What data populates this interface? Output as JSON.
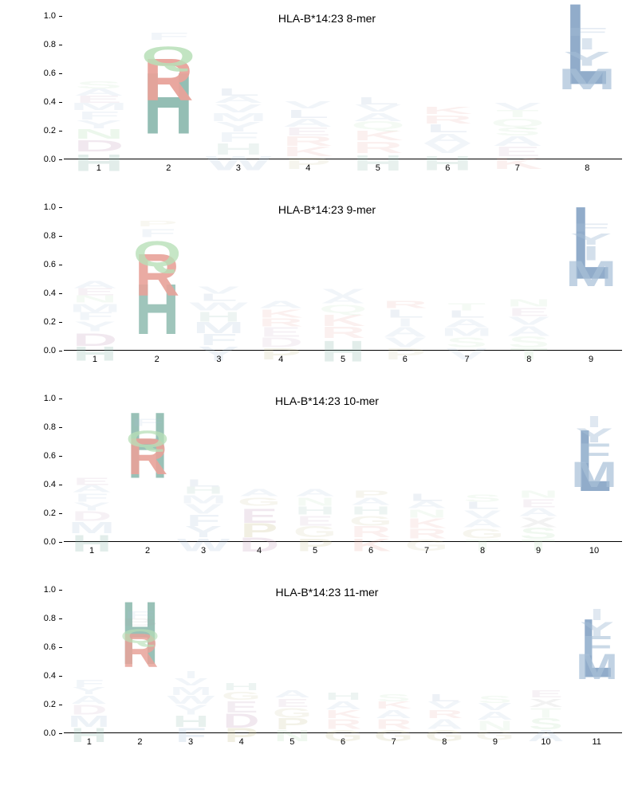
{
  "allele": "HLA-B*14:23",
  "panels": [
    {
      "title": "HLA-B*14:23 8-mer",
      "positions": 8
    },
    {
      "title": "HLA-B*14:23 9-mer",
      "positions": 9
    },
    {
      "title": "HLA-B*14:23 10-mer",
      "positions": 10
    },
    {
      "title": "HLA-B*14:23 11-mer",
      "positions": 11
    }
  ],
  "ylim": [
    0,
    1.0
  ],
  "yticks": [
    0.0,
    0.2,
    0.4,
    0.6,
    0.8,
    1.0
  ],
  "title_fontsize": 14,
  "tick_fontsize": 11,
  "aa_colors": {
    "H": "#8fbbb0",
    "R": "#e8a39a",
    "Q": "#b8e0b8",
    "K": "#e8a39a",
    "L": "#8ca8c8",
    "M": "#a8c0d8",
    "Y": "#a8c0d8",
    "F": "#a8c0d8",
    "I": "#a8c0d8",
    "V": "#a8c0d8",
    "W": "#a8c0d8",
    "A": "#a8c0d8",
    "D": "#c8a8c0",
    "E": "#c8a8c0",
    "P": "#c8c090",
    "N": "#b8e0b8",
    "S": "#b8e0b8",
    "T": "#b8e0b8",
    "G": "#c8c090",
    "C": "#b8e0b8"
  },
  "faded_alpha": 0.12,
  "strong_alpha": 0.95,
  "logos": {
    "8": [
      [
        [
          "H",
          0.12,
          0.25
        ],
        [
          "D",
          0.08,
          0.25
        ],
        [
          "N",
          0.07,
          0.25
        ],
        [
          "Y",
          0.06,
          0.15
        ],
        [
          "F",
          0.06,
          0.15
        ],
        [
          "M",
          0.05,
          0.15
        ],
        [
          "E",
          0.05,
          0.15
        ],
        [
          "A",
          0.05,
          0.15
        ],
        [
          "S",
          0.05,
          0.15
        ]
      ],
      [
        [
          "H",
          0.44,
          0.95
        ],
        [
          "R",
          0.3,
          0.95
        ],
        [
          "Q",
          0.14,
          0.85
        ],
        [
          "F",
          0.05,
          0.15
        ]
      ],
      [
        [
          "W",
          0.1,
          0.2
        ],
        [
          "H",
          0.08,
          0.15
        ],
        [
          "F",
          0.07,
          0.15
        ],
        [
          "Y",
          0.07,
          0.15
        ],
        [
          "M",
          0.06,
          0.15
        ],
        [
          "V",
          0.06,
          0.15
        ],
        [
          "A",
          0.05,
          0.15
        ],
        [
          "L",
          0.05,
          0.15
        ]
      ],
      [
        [
          "P",
          0.08,
          0.15
        ],
        [
          "K",
          0.07,
          0.15
        ],
        [
          "R",
          0.07,
          0.15
        ],
        [
          "E",
          0.06,
          0.15
        ],
        [
          "A",
          0.06,
          0.15
        ],
        [
          "L",
          0.06,
          0.15
        ],
        [
          "V",
          0.05,
          0.15
        ]
      ],
      [
        [
          "H",
          0.11,
          0.2
        ],
        [
          "R",
          0.08,
          0.15
        ],
        [
          "K",
          0.07,
          0.15
        ],
        [
          "Q",
          0.06,
          0.15
        ],
        [
          "A",
          0.06,
          0.15
        ],
        [
          "V",
          0.05,
          0.15
        ],
        [
          "L",
          0.05,
          0.15
        ]
      ],
      [
        [
          "H",
          0.1,
          0.2
        ],
        [
          "V",
          0.07,
          0.15
        ],
        [
          "A",
          0.07,
          0.15
        ],
        [
          "L",
          0.06,
          0.15
        ],
        [
          "R",
          0.06,
          0.15
        ],
        [
          "K",
          0.05,
          0.15
        ]
      ],
      [
        [
          "K",
          0.08,
          0.15
        ],
        [
          "E",
          0.07,
          0.15
        ],
        [
          "A",
          0.07,
          0.15
        ],
        [
          "S",
          0.06,
          0.15
        ],
        [
          "Q",
          0.06,
          0.15
        ],
        [
          "T",
          0.05,
          0.15
        ],
        [
          "V",
          0.05,
          0.15
        ]
      ],
      [
        [
          "L",
          0.58,
          0.95
        ],
        [
          "M",
          0.15,
          0.7
        ],
        [
          "Y",
          0.1,
          0.5
        ],
        [
          "I",
          0.08,
          0.4
        ],
        [
          "F",
          0.06,
          0.3
        ]
      ]
    ],
    "9": [
      [
        [
          "H",
          0.1,
          0.25
        ],
        [
          "D",
          0.09,
          0.25
        ],
        [
          "Y",
          0.07,
          0.15
        ],
        [
          "F",
          0.06,
          0.15
        ],
        [
          "M",
          0.06,
          0.15
        ],
        [
          "N",
          0.05,
          0.15
        ],
        [
          "E",
          0.05,
          0.15
        ],
        [
          "A",
          0.05,
          0.15
        ]
      ],
      [
        [
          "H",
          0.36,
          0.85
        ],
        [
          "R",
          0.3,
          0.9
        ],
        [
          "Q",
          0.18,
          0.8
        ],
        [
          "F",
          0.06,
          0.15
        ],
        [
          "P",
          0.04,
          0.12
        ]
      ],
      [
        [
          "Y",
          0.1,
          0.2
        ],
        [
          "F",
          0.08,
          0.2
        ],
        [
          "M",
          0.08,
          0.2
        ],
        [
          "H",
          0.07,
          0.15
        ],
        [
          "W",
          0.06,
          0.15
        ],
        [
          "L",
          0.05,
          0.15
        ],
        [
          "V",
          0.05,
          0.15
        ]
      ],
      [
        [
          "P",
          0.08,
          0.2
        ],
        [
          "D",
          0.07,
          0.15
        ],
        [
          "E",
          0.07,
          0.15
        ],
        [
          "R",
          0.06,
          0.15
        ],
        [
          "K",
          0.06,
          0.15
        ],
        [
          "A",
          0.05,
          0.15
        ]
      ],
      [
        [
          "H",
          0.15,
          0.25
        ],
        [
          "R",
          0.08,
          0.15
        ],
        [
          "K",
          0.08,
          0.15
        ],
        [
          "Q",
          0.06,
          0.15
        ],
        [
          "A",
          0.05,
          0.15
        ],
        [
          "V",
          0.05,
          0.15
        ]
      ],
      [
        [
          "P",
          0.08,
          0.15
        ],
        [
          "V",
          0.07,
          0.15
        ],
        [
          "A",
          0.07,
          0.15
        ],
        [
          "I",
          0.06,
          0.15
        ],
        [
          "L",
          0.06,
          0.15
        ],
        [
          "R",
          0.05,
          0.15
        ]
      ],
      [
        [
          "V",
          0.08,
          0.15
        ],
        [
          "S",
          0.07,
          0.15
        ],
        [
          "M",
          0.06,
          0.15
        ],
        [
          "A",
          0.06,
          0.15
        ],
        [
          "L",
          0.05,
          0.15
        ],
        [
          "T",
          0.05,
          0.15
        ]
      ],
      [
        [
          "T",
          0.08,
          0.2
        ],
        [
          "S",
          0.08,
          0.15
        ],
        [
          "A",
          0.07,
          0.15
        ],
        [
          "V",
          0.06,
          0.15
        ],
        [
          "E",
          0.06,
          0.15
        ],
        [
          "N",
          0.05,
          0.15
        ]
      ],
      [
        [
          "L",
          0.52,
          0.95
        ],
        [
          "M",
          0.18,
          0.7
        ],
        [
          "I",
          0.1,
          0.5
        ],
        [
          "Y",
          0.08,
          0.4
        ],
        [
          "F",
          0.06,
          0.3
        ]
      ]
    ],
    "10": [
      [
        [
          "H",
          0.12,
          0.25
        ],
        [
          "M",
          0.08,
          0.2
        ],
        [
          "D",
          0.07,
          0.15
        ],
        [
          "Y",
          0.06,
          0.15
        ],
        [
          "F",
          0.06,
          0.15
        ],
        [
          "A",
          0.05,
          0.15
        ],
        [
          "E",
          0.05,
          0.15
        ]
      ],
      [
        [
          "H",
          0.47,
          0.9
        ],
        [
          "R",
          0.26,
          0.9
        ],
        [
          "Q",
          0.12,
          0.75
        ],
        [
          "F",
          0.05,
          0.15
        ]
      ],
      [
        [
          "W",
          0.09,
          0.2
        ],
        [
          "Y",
          0.08,
          0.2
        ],
        [
          "F",
          0.08,
          0.2
        ],
        [
          "V",
          0.07,
          0.15
        ],
        [
          "M",
          0.06,
          0.15
        ],
        [
          "H",
          0.05,
          0.15
        ],
        [
          "L",
          0.05,
          0.15
        ]
      ],
      [
        [
          "D",
          0.1,
          0.25
        ],
        [
          "P",
          0.1,
          0.25
        ],
        [
          "E",
          0.1,
          0.25
        ],
        [
          "G",
          0.06,
          0.15
        ],
        [
          "A",
          0.05,
          0.15
        ]
      ],
      [
        [
          "P",
          0.09,
          0.2
        ],
        [
          "G",
          0.08,
          0.15
        ],
        [
          "E",
          0.07,
          0.15
        ],
        [
          "H",
          0.06,
          0.15
        ],
        [
          "N",
          0.06,
          0.15
        ],
        [
          "A",
          0.05,
          0.15
        ]
      ],
      [
        [
          "K",
          0.09,
          0.2
        ],
        [
          "R",
          0.08,
          0.15
        ],
        [
          "G",
          0.07,
          0.15
        ],
        [
          "H",
          0.06,
          0.15
        ],
        [
          "A",
          0.05,
          0.15
        ],
        [
          "P",
          0.05,
          0.15
        ]
      ],
      [
        [
          "G",
          0.08,
          0.15
        ],
        [
          "R",
          0.07,
          0.15
        ],
        [
          "K",
          0.07,
          0.15
        ],
        [
          "N",
          0.06,
          0.15
        ],
        [
          "A",
          0.05,
          0.15
        ],
        [
          "L",
          0.05,
          0.15
        ]
      ],
      [
        [
          "T",
          0.08,
          0.15
        ],
        [
          "G",
          0.07,
          0.15
        ],
        [
          "A",
          0.06,
          0.15
        ],
        [
          "V",
          0.06,
          0.15
        ],
        [
          "L",
          0.05,
          0.15
        ],
        [
          "S",
          0.05,
          0.15
        ]
      ],
      [
        [
          "T",
          0.08,
          0.2
        ],
        [
          "S",
          0.08,
          0.2
        ],
        [
          "X",
          0.07,
          0.15
        ],
        [
          "A",
          0.06,
          0.15
        ],
        [
          "E",
          0.06,
          0.15
        ],
        [
          "N",
          0.05,
          0.15
        ]
      ],
      [
        [
          "L",
          0.44,
          0.95
        ],
        [
          "M",
          0.18,
          0.7
        ],
        [
          "F",
          0.14,
          0.6
        ],
        [
          "Y",
          0.1,
          0.45
        ],
        [
          "I",
          0.08,
          0.35
        ]
      ]
    ],
    "11": [
      [
        [
          "H",
          0.1,
          0.25
        ],
        [
          "M",
          0.08,
          0.2
        ],
        [
          "D",
          0.07,
          0.15
        ],
        [
          "A",
          0.06,
          0.15
        ],
        [
          "Y",
          0.05,
          0.15
        ],
        [
          "F",
          0.05,
          0.15
        ]
      ],
      [
        [
          "H",
          0.45,
          0.9
        ],
        [
          "R",
          0.24,
          0.85
        ],
        [
          "Q",
          0.1,
          0.65
        ],
        [
          "B",
          0.05,
          0.15
        ],
        [
          "F",
          0.05,
          0.15
        ]
      ],
      [
        [
          "F",
          0.1,
          0.25
        ],
        [
          "H",
          0.08,
          0.2
        ],
        [
          "Y",
          0.07,
          0.15
        ],
        [
          "W",
          0.06,
          0.15
        ],
        [
          "M",
          0.06,
          0.15
        ],
        [
          "V",
          0.05,
          0.15
        ],
        [
          "I",
          0.05,
          0.15
        ]
      ],
      [
        [
          "P",
          0.1,
          0.25
        ],
        [
          "D",
          0.1,
          0.25
        ],
        [
          "E",
          0.08,
          0.2
        ],
        [
          "G",
          0.06,
          0.15
        ],
        [
          "H",
          0.05,
          0.15
        ]
      ],
      [
        [
          "N",
          0.08,
          0.2
        ],
        [
          "P",
          0.08,
          0.2
        ],
        [
          "G",
          0.07,
          0.15
        ],
        [
          "E",
          0.06,
          0.15
        ],
        [
          "A",
          0.05,
          0.15
        ]
      ],
      [
        [
          "G",
          0.08,
          0.2
        ],
        [
          "R",
          0.07,
          0.15
        ],
        [
          "K",
          0.06,
          0.15
        ],
        [
          "A",
          0.06,
          0.15
        ],
        [
          "H",
          0.05,
          0.15
        ]
      ],
      [
        [
          "G",
          0.08,
          0.2
        ],
        [
          "R",
          0.07,
          0.15
        ],
        [
          "A",
          0.06,
          0.15
        ],
        [
          "K",
          0.05,
          0.15
        ],
        [
          "S",
          0.05,
          0.15
        ]
      ],
      [
        [
          "G",
          0.08,
          0.2
        ],
        [
          "A",
          0.07,
          0.15
        ],
        [
          "R",
          0.06,
          0.15
        ],
        [
          "V",
          0.05,
          0.15
        ],
        [
          "L",
          0.05,
          0.15
        ]
      ],
      [
        [
          "G",
          0.07,
          0.15
        ],
        [
          "N",
          0.07,
          0.15
        ],
        [
          "A",
          0.06,
          0.15
        ],
        [
          "V",
          0.05,
          0.15
        ],
        [
          "S",
          0.05,
          0.15
        ]
      ],
      [
        [
          "A",
          0.08,
          0.2
        ],
        [
          "S",
          0.08,
          0.2
        ],
        [
          "T",
          0.07,
          0.15
        ],
        [
          "X",
          0.06,
          0.15
        ],
        [
          "E",
          0.05,
          0.15
        ]
      ],
      [
        [
          "L",
          0.42,
          0.95
        ],
        [
          "M",
          0.18,
          0.7
        ],
        [
          "F",
          0.14,
          0.6
        ],
        [
          "Y",
          0.1,
          0.45
        ],
        [
          "I",
          0.08,
          0.35
        ]
      ]
    ]
  }
}
